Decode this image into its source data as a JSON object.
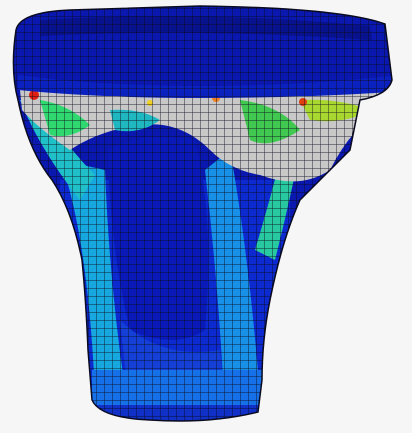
{
  "scene": {
    "description_colors": {
      "background": "#f6f6f6",
      "mesh_line": "#111111",
      "contour_scale": [
        "#0a14a8",
        "#1030d8",
        "#1860ee",
        "#18a0f0",
        "#20c8d8",
        "#30d890",
        "#40e040",
        "#a0e020",
        "#f0d020",
        "#f08020",
        "#e02010",
        "#d8d8d8"
      ]
    },
    "model": "fea-mesh-contour"
  }
}
